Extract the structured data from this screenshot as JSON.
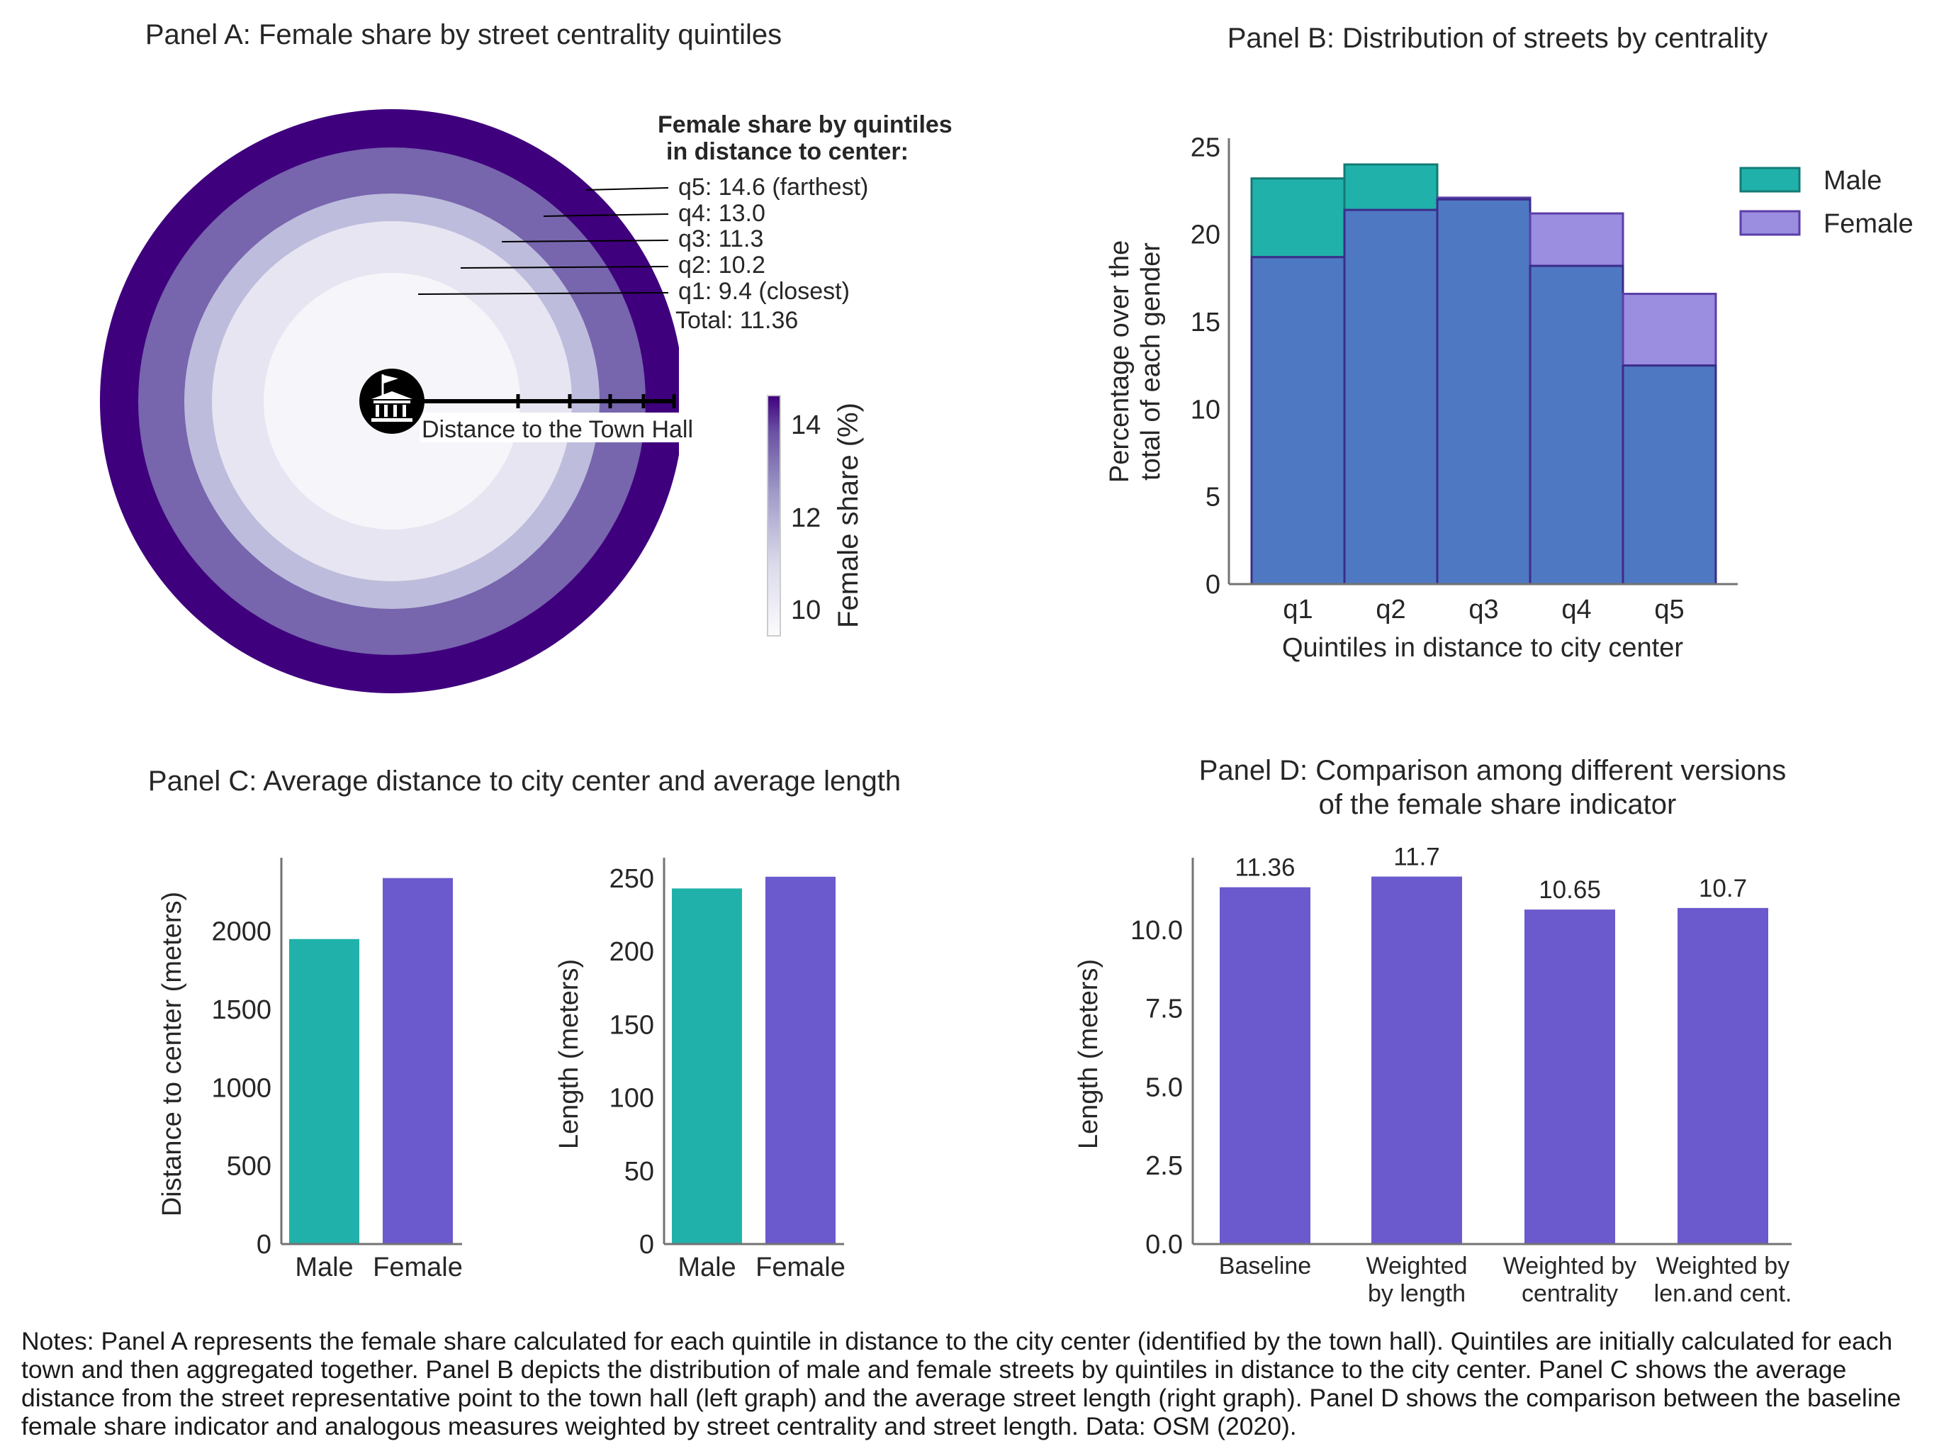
{
  "colors": {
    "male": "#20b2aa",
    "female": "#6a5acd",
    "overlap": "#4f78c2",
    "female_light": "#9b8ddf",
    "ring_q1": "#f6f5fa",
    "ring_q2": "#e6e5f1",
    "ring_q3": "#bdbcdc",
    "ring_q4": "#7765ad",
    "ring_q5": "#3f007d",
    "axis": "#737373",
    "text": "#262626"
  },
  "panelA": {
    "title": "Panel A: Female share by street centrality quintiles",
    "legend_title_1": "Female share by quintiles",
    "legend_title_2": "in distance to center:",
    "labels": [
      "q5: 14.6 (farthest)",
      "q4: 13.0",
      "q3: 11.3",
      "q2: 10.2",
      "q1:   9.4 (closest)"
    ],
    "total": "Total: 11.36",
    "axis_label": "Distance to the Town Hall",
    "icon": "town-hall-icon",
    "colorbar_label": "Female share (%)",
    "colorbar_ticks": [
      "14",
      "12",
      "10"
    ]
  },
  "chart_data": [
    {
      "type": "pie",
      "title": "Panel A: Female share by street centrality quintiles",
      "categories": [
        "q1",
        "q2",
        "q3",
        "q4",
        "q5"
      ],
      "values": [
        9.4,
        10.2,
        11.3,
        13.0,
        14.6
      ],
      "total": 11.36,
      "colorbar": {
        "label": "Female share (%)",
        "range": [
          9.4,
          14.6
        ],
        "ticks": [
          10,
          12,
          14
        ]
      }
    },
    {
      "type": "bar",
      "title": "Panel B: Distribution of streets by centrality",
      "categories": [
        "q1",
        "q2",
        "q3",
        "q4",
        "q5"
      ],
      "series": [
        {
          "name": "Male",
          "values": [
            23.2,
            24.0,
            22.0,
            18.2,
            12.5
          ]
        },
        {
          "name": "Female",
          "values": [
            18.7,
            21.4,
            22.1,
            21.2,
            16.6
          ]
        }
      ],
      "xlabel": "Quintiles in distance to city center",
      "ylabel": "Percentage over the\ntotal of each gender",
      "ylabel_lines": [
        "Percentage over the",
        "total of each gender"
      ],
      "ylim": [
        0,
        25.5
      ],
      "yticks": [
        "0",
        "5",
        "10",
        "15",
        "20",
        "25"
      ],
      "legend": "top-right"
    },
    {
      "type": "bar",
      "title": "Panel C: Average distance to city center and average length",
      "categories": [
        "Male",
        "Female"
      ],
      "values": [
        1950,
        2340
      ],
      "ylabel": "Distance to center (meters)",
      "ylim": [
        0,
        2470
      ],
      "yticks": [
        "0",
        "500",
        "1000",
        "1500",
        "2000"
      ]
    },
    {
      "type": "bar",
      "categories": [
        "Male",
        "Female"
      ],
      "values": [
        243,
        251
      ],
      "ylabel": "Length (meters)",
      "ylim": [
        0,
        264
      ],
      "yticks": [
        "0",
        "50",
        "100",
        "150",
        "200",
        "250"
      ]
    },
    {
      "type": "bar",
      "title": "Panel D: Comparison among different versions\nof the female share indicator",
      "title_lines": [
        "Panel D: Comparison among different versions",
        "of the female share indicator"
      ],
      "categories": [
        "Baseline",
        "Weighted\nby length",
        "Weighted by\ncentrality",
        "Weighted by\nlen.and cent."
      ],
      "category_lines": [
        [
          "Baseline"
        ],
        [
          "Weighted",
          "by length"
        ],
        [
          "Weighted by",
          "centrality"
        ],
        [
          "Weighted by",
          "len.and cent."
        ]
      ],
      "values": [
        11.36,
        11.7,
        10.65,
        10.7
      ],
      "data_labels": [
        "11.36",
        "11.7",
        "10.65",
        "10.7"
      ],
      "ylabel": "Length (meters)",
      "ylim": [
        0,
        12.3
      ],
      "yticks": [
        "0.0",
        "2.5",
        "5.0",
        "7.5",
        "10.0"
      ]
    }
  ],
  "notes": "Notes: Panel A represents the female share calculated for each quintile in distance to the city center (identified by the town hall). Quintiles are initially calculated for each town and then aggregated together. Panel B depicts the distribution of male and female streets by quintiles in distance to the city center. Panel C shows the average distance from the street representative point to the town hall (left graph) and the average street length (right graph). Panel D shows the comparison between the baseline female share indicator and analogous measures weighted by street centrality and street length. Data: OSM (2020)."
}
